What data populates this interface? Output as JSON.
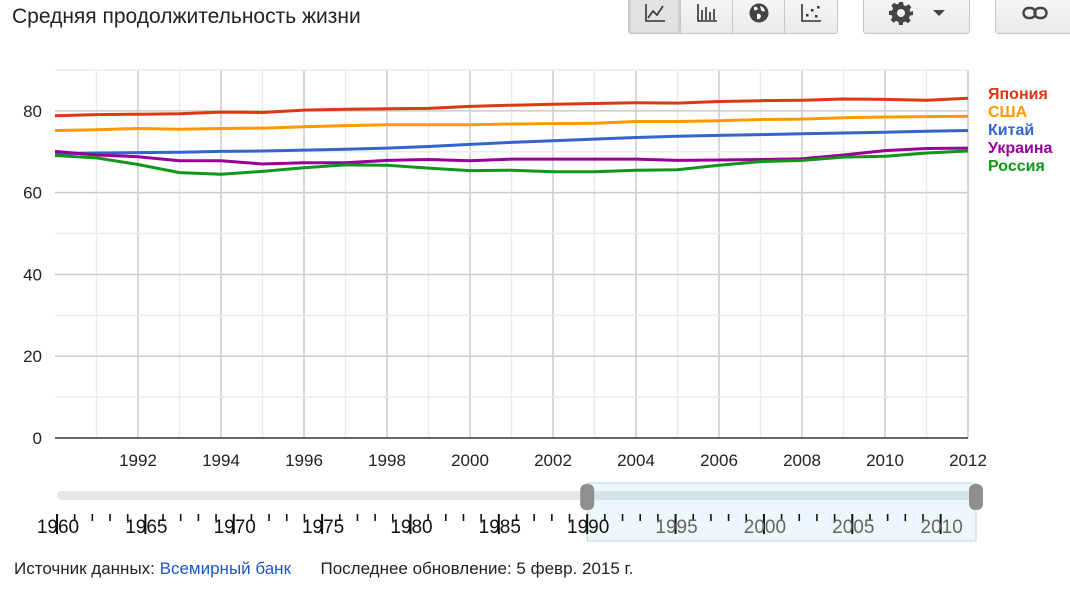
{
  "title": "Средняя продолжительность жизни",
  "toolbar": {
    "chart_types": [
      {
        "icon": "line-chart-icon",
        "active": true
      },
      {
        "icon": "bar-chart-icon",
        "active": false
      },
      {
        "icon": "globe-map-icon",
        "active": false
      },
      {
        "icon": "scatter-chart-icon",
        "active": false
      }
    ],
    "settings_icon": "gear-icon",
    "dropdown_icon": "caret-down-icon",
    "link_icon": "link-icon"
  },
  "chart_data": {
    "type": "line",
    "x": [
      1990,
      1991,
      1992,
      1993,
      1994,
      1995,
      1996,
      1997,
      1998,
      1999,
      2000,
      2001,
      2002,
      2003,
      2004,
      2005,
      2006,
      2007,
      2008,
      2009,
      2010,
      2011,
      2012
    ],
    "x_ticks": [
      1992,
      1994,
      1996,
      1998,
      2000,
      2002,
      2004,
      2006,
      2008,
      2010,
      2012
    ],
    "y_ticks": [
      0,
      20,
      40,
      60,
      80
    ],
    "ylim": [
      0,
      90
    ],
    "xlim": [
      1990,
      2012
    ],
    "grid": true,
    "legend_position": "right",
    "series": [
      {
        "name": "Япония",
        "color": "#dc3912",
        "values": [
          78.8,
          79.1,
          79.2,
          79.3,
          79.7,
          79.6,
          80.2,
          80.4,
          80.5,
          80.6,
          81.1,
          81.4,
          81.6,
          81.8,
          82.0,
          81.9,
          82.3,
          82.5,
          82.6,
          82.9,
          82.8,
          82.6,
          83.1
        ]
      },
      {
        "name": "США",
        "color": "#ff9900",
        "values": [
          75.2,
          75.4,
          75.7,
          75.5,
          75.7,
          75.8,
          76.1,
          76.4,
          76.6,
          76.6,
          76.6,
          76.8,
          76.9,
          77.0,
          77.4,
          77.4,
          77.6,
          77.9,
          78.0,
          78.3,
          78.5,
          78.6,
          78.7
        ]
      },
      {
        "name": "Китай",
        "color": "#3366cc",
        "values": [
          69.5,
          69.7,
          69.8,
          69.9,
          70.1,
          70.2,
          70.4,
          70.6,
          70.9,
          71.3,
          71.8,
          72.3,
          72.7,
          73.1,
          73.5,
          73.8,
          74.0,
          74.2,
          74.4,
          74.6,
          74.8,
          75.0,
          75.2
        ]
      },
      {
        "name": "Украина",
        "color": "#990099",
        "values": [
          70.1,
          69.2,
          68.8,
          67.8,
          67.8,
          67.0,
          67.3,
          67.3,
          67.9,
          68.1,
          67.8,
          68.2,
          68.2,
          68.2,
          68.2,
          67.9,
          68.0,
          68.1,
          68.3,
          69.2,
          70.3,
          70.8,
          70.9
        ]
      },
      {
        "name": "Россия",
        "color": "#109618",
        "values": [
          69.1,
          68.5,
          66.9,
          64.9,
          64.5,
          65.2,
          66.1,
          66.8,
          66.7,
          66.0,
          65.4,
          65.5,
          65.1,
          65.1,
          65.5,
          65.6,
          66.7,
          67.6,
          67.9,
          68.7,
          68.9,
          69.7,
          70.2
        ]
      }
    ]
  },
  "timeline": {
    "labels": [
      "1960",
      "1965",
      "1970",
      "1975",
      "1980",
      "1985",
      "1990",
      "1995",
      "2000",
      "2005",
      "2010"
    ],
    "range_start": 1960,
    "range_end": 2012,
    "selected": [
      1990,
      2012
    ]
  },
  "footer": {
    "source_label": "Источник данных:",
    "source_link": "Всемирный банк",
    "updated": "Последнее обновление: 5 февр. 2015 г."
  }
}
